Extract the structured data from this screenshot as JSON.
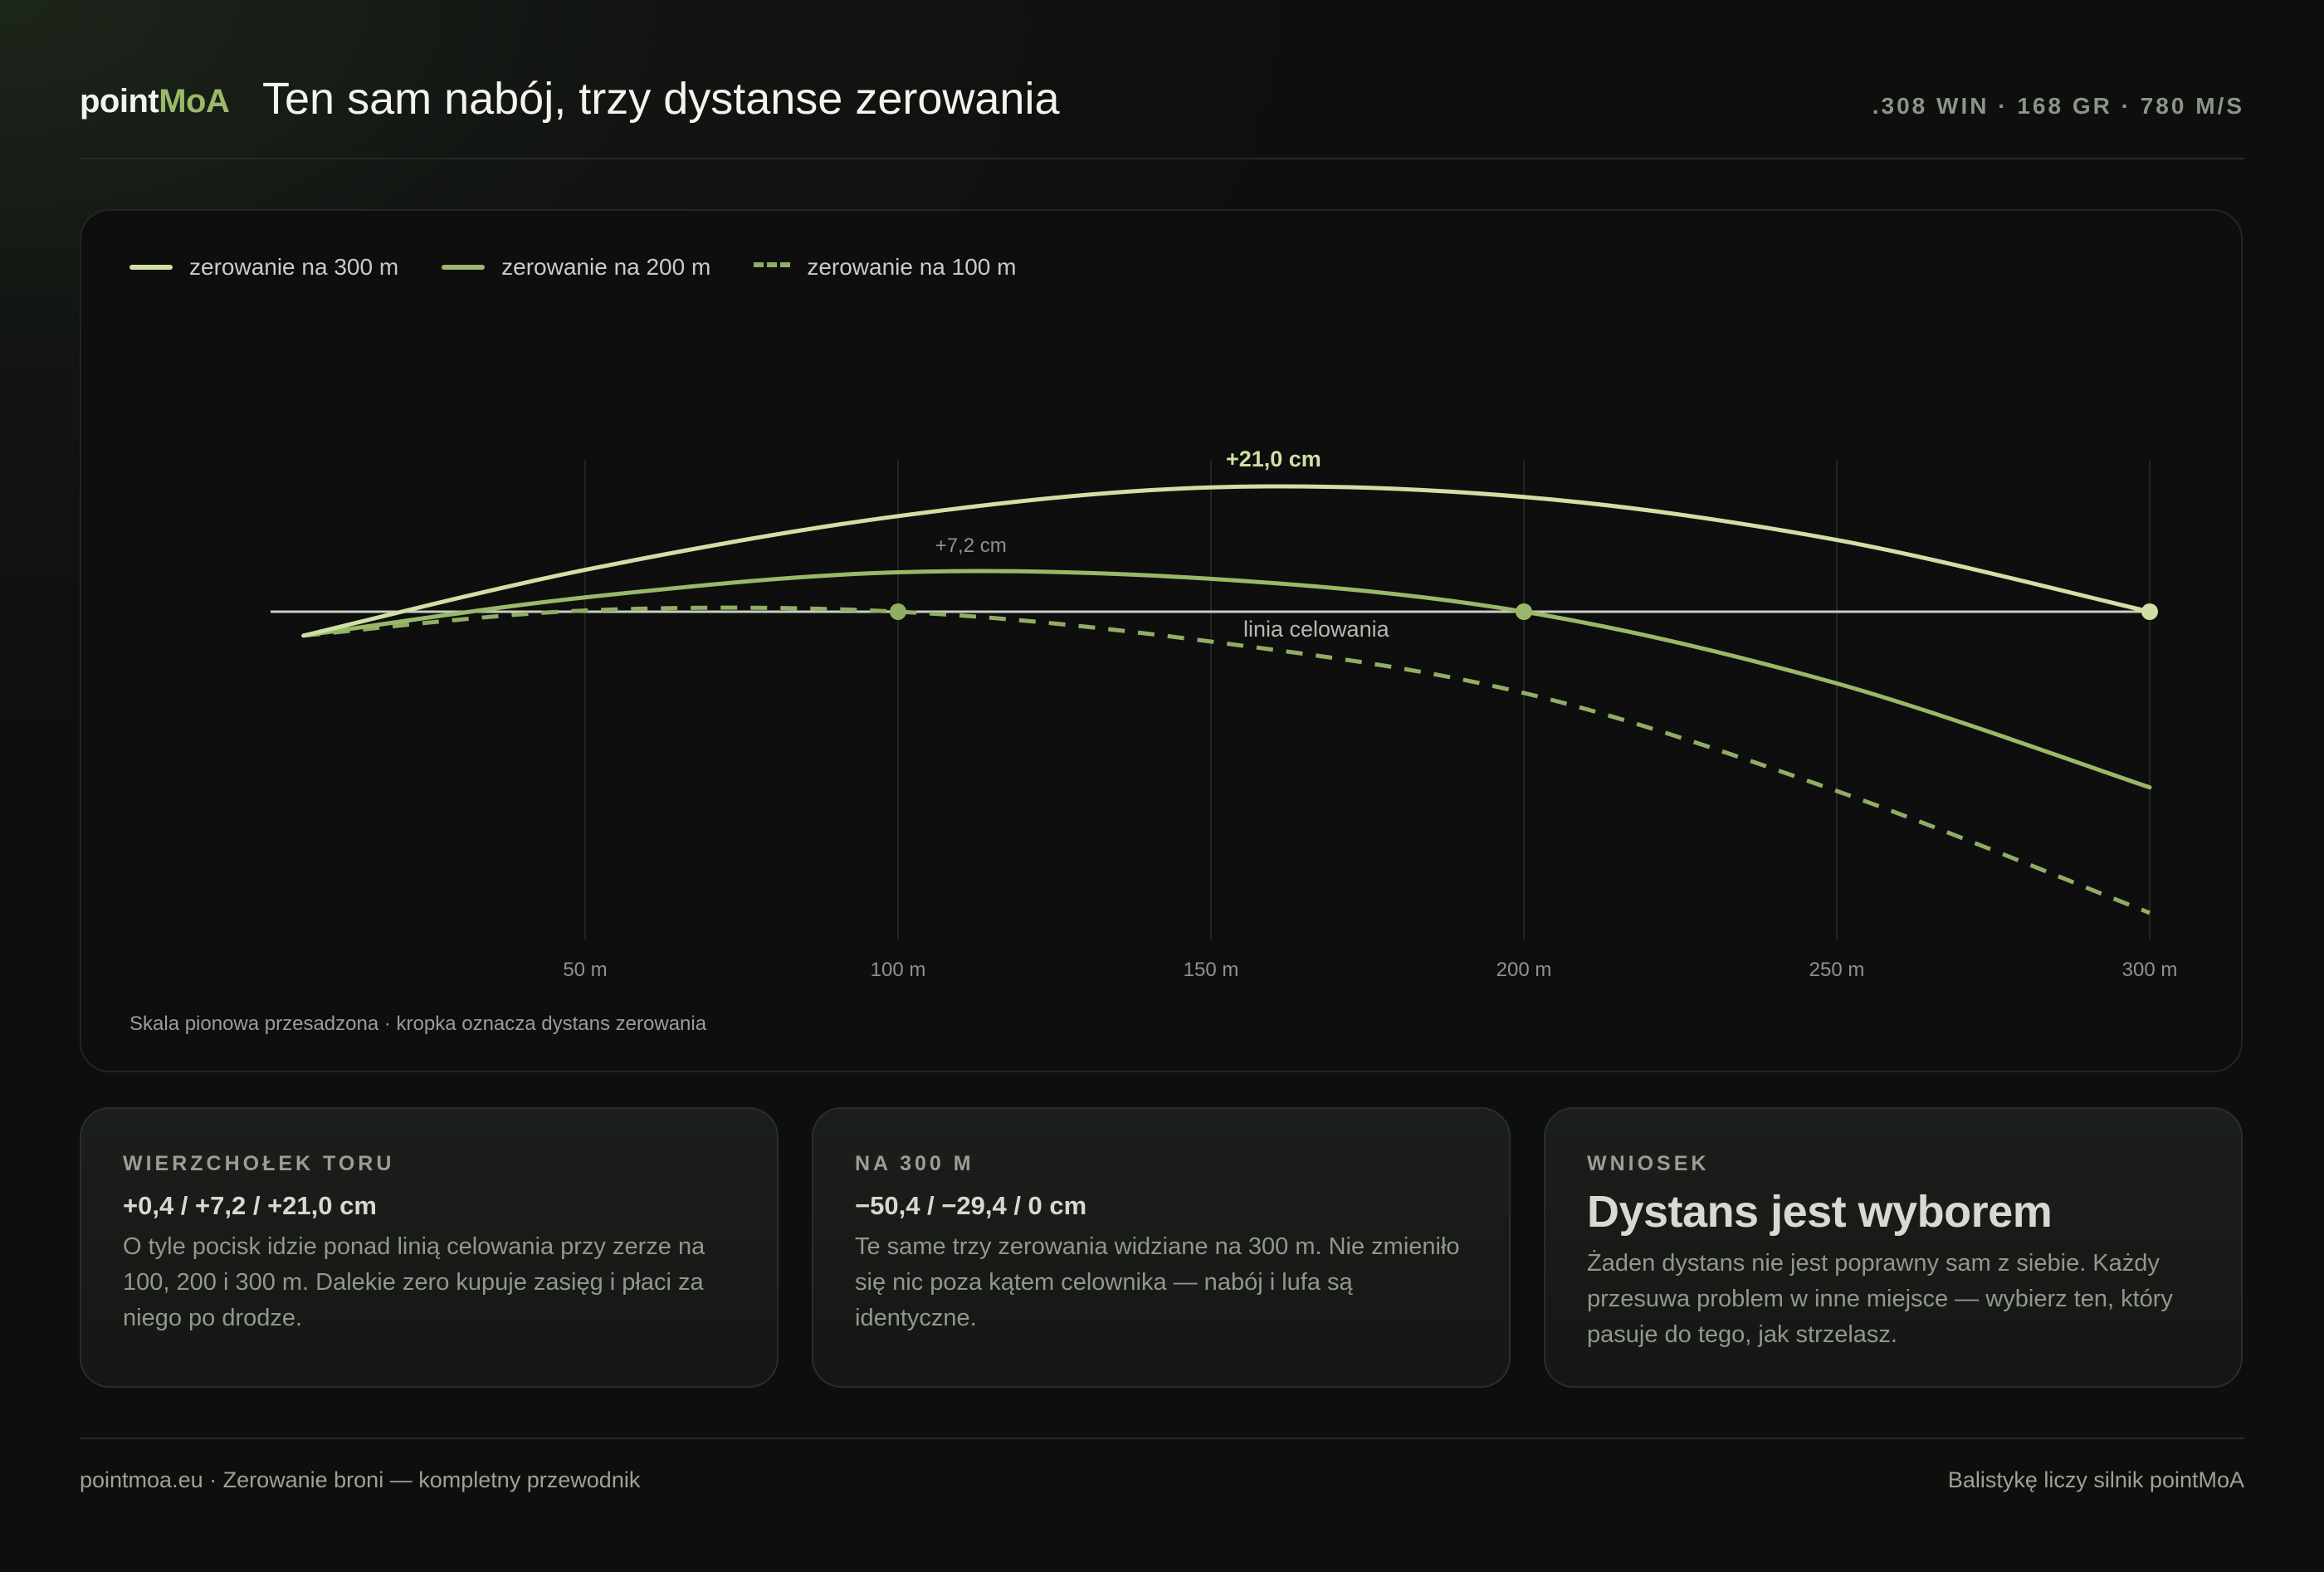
{
  "header": {
    "brand_prefix": "point",
    "brand_accent": "MoA",
    "title": "Ten sam nabój, trzy dystanse zerowania",
    "specs": ".308 WIN · 168 GR · 780 M/S"
  },
  "chart_data": {
    "type": "line",
    "x_unit": "m",
    "xlim": [
      0,
      300
    ],
    "xticks": [
      50,
      100,
      150,
      200,
      250,
      300
    ],
    "xtick_labels": [
      "50 m",
      "100 m",
      "150 m",
      "200 m",
      "250 m",
      "300 m"
    ],
    "y_unit": "cm",
    "y_scale": "exaggerated",
    "grid": true,
    "legend_position": "top-left",
    "sight_line_label": "linia celowania",
    "series": [
      {
        "name": "zerowanie na 300 m",
        "color": "#cfe0a4",
        "dashed": false,
        "zero": 300,
        "x": [
          5,
          50,
          100,
          150,
          200,
          250,
          300
        ],
        "y": [
          -4.0,
          7.0,
          16.0,
          20.8,
          19.2,
          12.0,
          0.0
        ],
        "peak": {
          "x": 160,
          "y": 21.0,
          "label": "+21,0 cm"
        }
      },
      {
        "name": "zerowanie na 200 m",
        "color": "#9ab86a",
        "dashed": false,
        "zero": 200,
        "x": [
          5,
          50,
          100,
          150,
          200,
          250,
          300
        ],
        "y": [
          -4.0,
          2.4,
          6.6,
          5.5,
          0.0,
          -12.0,
          -29.4
        ],
        "peak": {
          "x": 118,
          "y": 7.2,
          "label": "+7,2 cm"
        }
      },
      {
        "name": "zerowanie na 100 m",
        "color": "#8fae63",
        "dashed": true,
        "zero": 100,
        "x": [
          5,
          50,
          100,
          150,
          200,
          250,
          300
        ],
        "y": [
          -4.0,
          0.2,
          0.0,
          -5.0,
          -13.6,
          -30.0,
          -50.4
        ]
      }
    ],
    "note": "Skala pionowa przesadzona · kropka oznacza dystans zerowania"
  },
  "cards": [
    {
      "eyebrow": "WIERZCHOŁEK TORU",
      "value": "+0,4 / +7,2 / +21,0 cm",
      "body": "O tyle pocisk idzie ponad linią celowania przy zerze na 100, 200 i 300 m. Dalekie zero kupuje zasięg i płaci za niego po drodze."
    },
    {
      "eyebrow": "NA 300 M",
      "value": "−50,4 / −29,4 / 0 cm",
      "body": "Te same trzy zerowania widziane na 300 m. Nie zmieniło się nic poza kątem celownika — nabój i lufa są identyczne."
    },
    {
      "eyebrow": "WNIOSEK",
      "headline": "Dystans jest wyborem",
      "body": "Żaden dystans nie jest poprawny sam z siebie. Każdy przesuwa problem w inne miejsce — wybierz ten, który pasuje do tego, jak strzelasz."
    }
  ],
  "footer": {
    "left": "pointmoa.eu · Zerowanie broni — kompletny przewodnik",
    "right": "Balistykę liczy silnik pointMoA"
  }
}
